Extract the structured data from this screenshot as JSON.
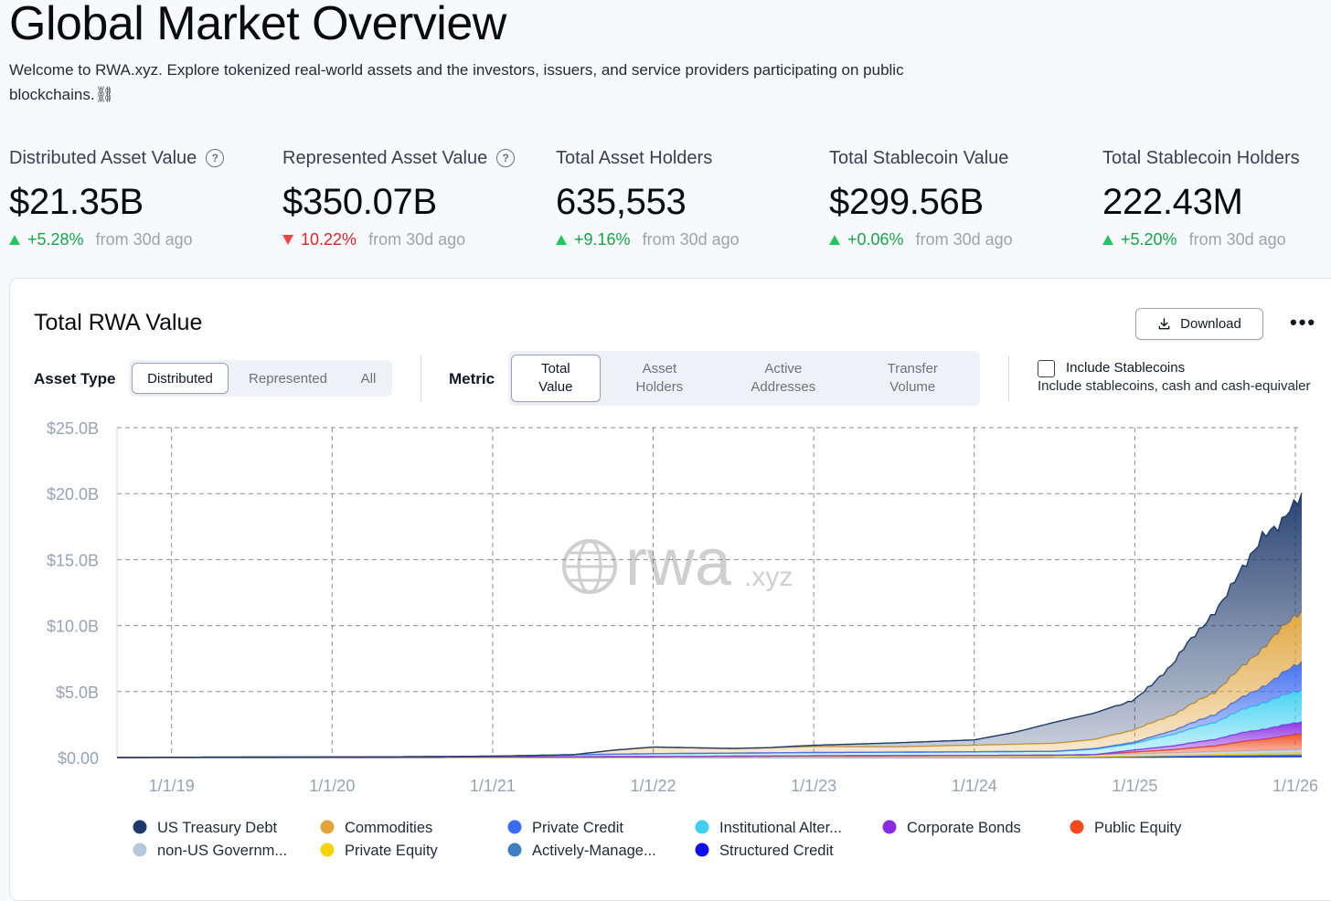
{
  "page": {
    "title": "Global Market Overview",
    "intro": "Welcome to RWA.xyz. Explore tokenized real-world assets and the investors, issuers, and service providers participating on public blockchains.⛓"
  },
  "kpis": [
    {
      "label": "Distributed Asset Value",
      "value": "$21.35B",
      "change": "+5.28%",
      "direction": "up",
      "suffix": "from 30d ago",
      "help": true
    },
    {
      "label": "Represented Asset Value",
      "value": "$350.07B",
      "change": "10.22%",
      "direction": "down",
      "suffix": "from 30d ago",
      "help": true
    },
    {
      "label": "Total Asset Holders",
      "value": "635,553",
      "change": "+9.16%",
      "direction": "up",
      "suffix": "from 30d ago",
      "help": false
    },
    {
      "label": "Total Stablecoin Value",
      "value": "$299.56B",
      "change": "+0.06%",
      "direction": "up",
      "suffix": "from 30d ago",
      "help": false
    },
    {
      "label": "Total Stablecoin Holders",
      "value": "222.43M",
      "change": "+5.20%",
      "direction": "up",
      "suffix": "from 30d ago",
      "help": false
    }
  ],
  "card": {
    "title": "Total RWA Value",
    "download_label": "Download",
    "more_label": "•••",
    "asset_type_label": "Asset Type",
    "asset_type_options": [
      "Distributed",
      "Represented",
      "All"
    ],
    "asset_type_selected": "Distributed",
    "metric_label": "Metric",
    "metric_options": [
      [
        "Total",
        "Value"
      ],
      [
        "Asset",
        "Holders"
      ],
      [
        "Active",
        "Addresses"
      ],
      [
        "Transfer",
        "Volume"
      ]
    ],
    "metric_selected": "Total Value",
    "stablecoin_checkbox_label": "Include Stablecoins",
    "stablecoin_checkbox_sub": "Include stablecoins, cash and cash-equivaler",
    "stablecoin_checked": false,
    "watermark_main": "rwa",
    "watermark_suffix": ".xyz"
  },
  "chart_data": {
    "type": "area",
    "title": "Total RWA Value",
    "stacked": true,
    "xlabel": "",
    "ylabel": "",
    "ylim": [
      0,
      25
    ],
    "y_unit": "B USD",
    "y_ticks": [
      "$0.00",
      "$5.0B",
      "$10.0B",
      "$15.0B",
      "$20.0B",
      "$25.0B"
    ],
    "y_tick_values": [
      0,
      5,
      10,
      15,
      20,
      25
    ],
    "x_ticks": [
      "1/1/19",
      "1/1/20",
      "1/1/21",
      "1/1/22",
      "1/1/23",
      "1/1/24",
      "1/1/25",
      "1/1/26"
    ],
    "x_tick_values": [
      2019,
      2020,
      2021,
      2022,
      2023,
      2024,
      2025,
      2026
    ],
    "xlim": [
      2018.66,
      2026.04
    ],
    "grid": true,
    "legend_position": "bottom",
    "series": [
      {
        "name": "US Treasury Debt",
        "color": "#1e3a6b",
        "x": [
          2022.75,
          2023.0,
          2023.5,
          2024.0,
          2024.25,
          2024.5,
          2024.75,
          2025.0,
          2025.1,
          2025.2,
          2025.3,
          2025.4,
          2025.5,
          2025.6,
          2025.7,
          2025.8,
          2025.9,
          2026.04
        ],
        "values": [
          0.02,
          0.1,
          0.3,
          0.4,
          0.9,
          1.6,
          2.0,
          2.3,
          2.8,
          3.6,
          4.6,
          5.2,
          6.2,
          6.8,
          7.6,
          8.8,
          7.8,
          9.0
        ]
      },
      {
        "name": "Commodities",
        "color": "#e0a43a",
        "x": [
          2018.66,
          2021.5,
          2021.75,
          2022.0,
          2022.5,
          2023.0,
          2023.5,
          2024.0,
          2024.5,
          2024.75,
          2025.0,
          2025.25,
          2025.5,
          2025.7,
          2025.85,
          2026.04
        ],
        "values": [
          0,
          0.0,
          0.3,
          0.5,
          0.35,
          0.45,
          0.4,
          0.5,
          0.6,
          0.7,
          0.95,
          1.2,
          1.7,
          2.4,
          3.2,
          3.8
        ]
      },
      {
        "name": "Private Credit",
        "color": "#3b6bf0",
        "x": [
          2018.66,
          2024.5,
          2025.0,
          2025.25,
          2025.5,
          2025.7,
          2025.85,
          2026.04
        ],
        "values": [
          0,
          0.0,
          0.1,
          0.3,
          0.6,
          1.0,
          1.4,
          2.2
        ]
      },
      {
        "name": "Institutional Alter...",
        "color": "#3fd0f0",
        "x": [
          2018.66,
          2020.5,
          2021.0,
          2021.5,
          2022.0,
          2023.0,
          2024.0,
          2024.5,
          2025.0,
          2025.25,
          2025.5,
          2025.7,
          2025.85,
          2026.04
        ],
        "values": [
          0.01,
          0.02,
          0.05,
          0.15,
          0.22,
          0.25,
          0.28,
          0.3,
          0.5,
          0.9,
          1.3,
          1.8,
          2.1,
          2.4
        ]
      },
      {
        "name": "Corporate Bonds",
        "color": "#8a2be2",
        "x": [
          2018.66,
          2024.75,
          2025.0,
          2025.25,
          2025.5,
          2025.7,
          2025.85,
          2026.04
        ],
        "values": [
          0,
          0.0,
          0.15,
          0.3,
          0.5,
          0.7,
          0.8,
          0.9
        ]
      },
      {
        "name": "Public Equity",
        "color": "#f04a1e",
        "x": [
          2018.66,
          2024.75,
          2025.0,
          2025.25,
          2025.5,
          2025.7,
          2025.85,
          2026.04
        ],
        "values": [
          0,
          0.0,
          0.15,
          0.25,
          0.45,
          0.75,
          0.9,
          1.2
        ]
      },
      {
        "name": "non-US Governm...",
        "color": "#b7c7dc",
        "x": [
          2018.66,
          2022.0,
          2023.0,
          2024.0,
          2025.0,
          2025.5,
          2026.04
        ],
        "values": [
          0,
          0.05,
          0.1,
          0.12,
          0.15,
          0.2,
          0.25
        ]
      },
      {
        "name": "Private Equity",
        "color": "#f5d20c",
        "x": [
          2018.66,
          2024.5,
          2025.0,
          2025.5,
          2026.04
        ],
        "values": [
          0,
          0.02,
          0.05,
          0.1,
          0.15
        ]
      },
      {
        "name": "Actively-Manage...",
        "color": "#3f7fbf",
        "x": [
          2018.66,
          2024.5,
          2025.0,
          2025.5,
          2026.04
        ],
        "values": [
          0,
          0.01,
          0.04,
          0.08,
          0.12
        ]
      },
      {
        "name": "Structured Credit",
        "color": "#1010e8",
        "x": [
          2018.66,
          2024.5,
          2025.0,
          2025.5,
          2026.04
        ],
        "values": [
          0,
          0.01,
          0.03,
          0.06,
          0.1
        ]
      }
    ],
    "legend_rows": [
      [
        "US Treasury Debt",
        "Commodities",
        "Private Credit",
        "Institutional Alter...",
        "Corporate Bonds",
        "Public Equity"
      ],
      [
        "non-US Governm...",
        "Private Equity",
        "Actively-Manage...",
        "Structured Credit"
      ]
    ]
  }
}
